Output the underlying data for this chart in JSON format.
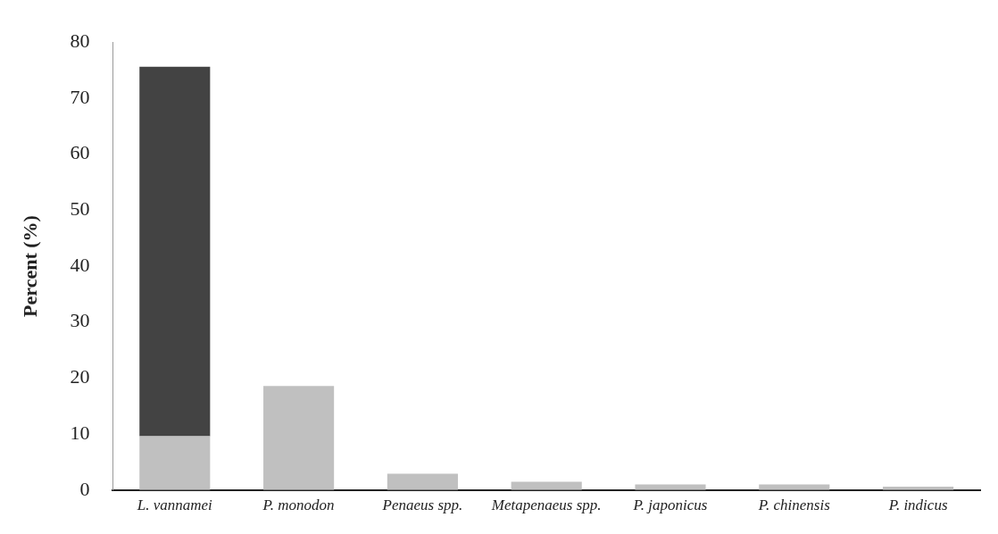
{
  "chart_data": {
    "type": "bar",
    "ylabel": "Percent (%)",
    "categories": [
      "L. vannamei",
      "P. monodon",
      "Penaeus spp.",
      "Metapenaeus spp.",
      "P. japonicus",
      "P. chinensis",
      "P. indicus"
    ],
    "stacked": true,
    "series": [
      {
        "color": "#c0c0c0",
        "values": [
          9.6,
          18.6,
          2.9,
          1.5,
          1.0,
          1.0,
          0.6
        ]
      },
      {
        "color": "#434343",
        "values": [
          66,
          null,
          null,
          null,
          null,
          null,
          null
        ]
      }
    ],
    "ylim": [
      0,
      80
    ],
    "yticks": [
      0,
      10,
      20,
      30,
      40,
      50,
      60,
      70,
      80
    ],
    "grid": false,
    "legend": false
  }
}
